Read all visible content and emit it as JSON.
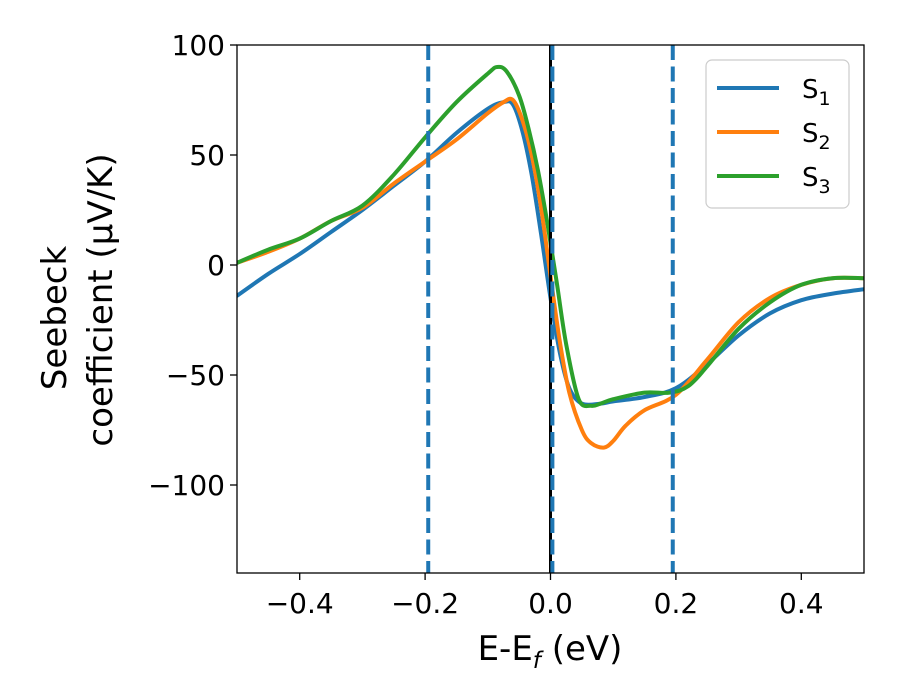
{
  "chart_data": {
    "type": "line",
    "xlabel": {
      "main": "E-E",
      "sub": "f",
      "rest": " (eV)"
    },
    "ylabel": {
      "line1": "Seebeck",
      "line2": "coefficient  (μV/K)"
    },
    "xlim": [
      -0.5,
      0.5
    ],
    "ylim": [
      -140,
      100
    ],
    "xticks": [
      -0.4,
      -0.2,
      0.0,
      0.2,
      0.4
    ],
    "xtick_labels": [
      "−0.4",
      "−0.2",
      "0.0",
      "0.2",
      "0.4"
    ],
    "yticks": [
      100,
      50,
      0,
      -50,
      -100
    ],
    "ytick_labels": [
      "100",
      "50",
      "0",
      "−50",
      "−100"
    ],
    "grid": false,
    "legend_position": "upper-right",
    "reference_lines": [
      {
        "x": -0.195,
        "style": "dashed",
        "color": "#1f77b4"
      },
      {
        "x": 0.0,
        "style": "solid",
        "color": "#000000"
      },
      {
        "x": 0.003,
        "style": "dashed",
        "color": "#1f77b4"
      },
      {
        "x": 0.195,
        "style": "dashed",
        "color": "#1f77b4"
      }
    ],
    "series": [
      {
        "name": "S",
        "sub": "1",
        "color": "#1f77b4",
        "x": [
          -0.5,
          -0.45,
          -0.4,
          -0.35,
          -0.3,
          -0.25,
          -0.2,
          -0.15,
          -0.1,
          -0.075,
          -0.06,
          -0.045,
          -0.03,
          -0.015,
          0.0,
          0.015,
          0.03,
          0.05,
          0.08,
          0.1,
          0.15,
          0.2,
          0.25,
          0.3,
          0.35,
          0.4,
          0.45,
          0.5
        ],
        "y": [
          -14,
          -4,
          5,
          15,
          25,
          36,
          47,
          60,
          71,
          74,
          73,
          61,
          41,
          14,
          -15,
          -40,
          -56,
          -63,
          -63,
          -62,
          -60,
          -56,
          -45,
          -32,
          -22,
          -16,
          -13,
          -11
        ]
      },
      {
        "name": "S",
        "sub": "2",
        "color": "#ff7f0e",
        "x": [
          -0.5,
          -0.45,
          -0.4,
          -0.35,
          -0.3,
          -0.25,
          -0.2,
          -0.15,
          -0.1,
          -0.075,
          -0.06,
          -0.045,
          -0.03,
          -0.015,
          0.0,
          0.015,
          0.03,
          0.05,
          0.065,
          0.085,
          0.1,
          0.12,
          0.15,
          0.2,
          0.25,
          0.3,
          0.35,
          0.4,
          0.45,
          0.5
        ],
        "y": [
          1,
          6,
          12,
          20,
          26,
          37,
          47,
          57,
          69,
          74,
          75,
          66,
          50,
          26,
          -5,
          -35,
          -58,
          -75,
          -81,
          -83,
          -80,
          -73,
          -66,
          -59,
          -43,
          -26,
          -15,
          -9,
          -6,
          -6
        ]
      },
      {
        "name": "S",
        "sub": "3",
        "color": "#2ca02c",
        "x": [
          -0.5,
          -0.45,
          -0.4,
          -0.35,
          -0.3,
          -0.25,
          -0.2,
          -0.15,
          -0.1,
          -0.085,
          -0.07,
          -0.05,
          -0.035,
          -0.02,
          -0.005,
          0.01,
          0.025,
          0.045,
          0.065,
          0.08,
          0.1,
          0.15,
          0.19,
          0.22,
          0.25,
          0.3,
          0.35,
          0.4,
          0.45,
          0.5
        ],
        "y": [
          1,
          7,
          12,
          20,
          27,
          41,
          58,
          74,
          87,
          90,
          88,
          77,
          62,
          43,
          19,
          -8,
          -36,
          -61,
          -64,
          -63,
          -61,
          -58,
          -58,
          -55,
          -46,
          -29,
          -17,
          -9,
          -6,
          -6
        ]
      }
    ]
  }
}
